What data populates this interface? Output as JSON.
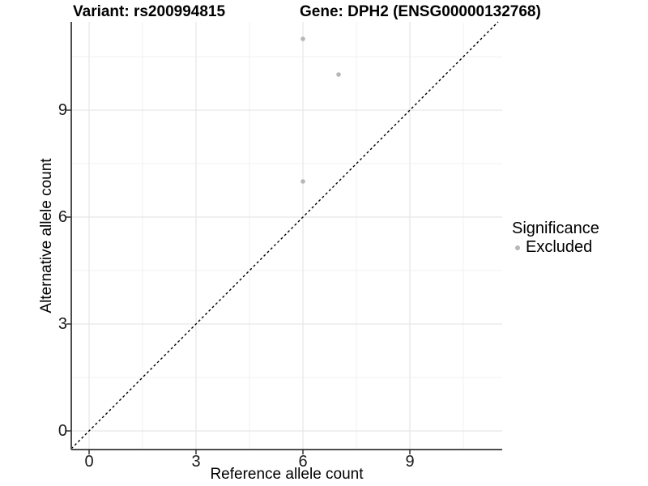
{
  "titles": {
    "variant": "Variant: rs200994815",
    "gene": "Gene: DPH2 (ENSG00000132768)"
  },
  "axes": {
    "x_label": "Reference allele count",
    "y_label": "Alternative allele count"
  },
  "legend": {
    "title": "Significance",
    "items": [
      {
        "label": "Excluded",
        "color": "#b7b7b7"
      }
    ]
  },
  "colors": {
    "background": "#ffffff",
    "point": "#b7b7b7",
    "grid_major": "#e7e7e7",
    "grid_minor": "#f1f1f1",
    "axis_line": "#4d4d4d",
    "tick": "#333333",
    "ref_line": "#000000",
    "text": "#000000"
  },
  "chart_data": {
    "type": "scatter",
    "title": "Variant: rs200994815 | Gene: DPH2 (ENSG00000132768)",
    "xlabel": "Reference allele count",
    "ylabel": "Alternative allele count",
    "xlim": [
      -0.55,
      11.55
    ],
    "ylim": [
      -0.55,
      11.55
    ],
    "x_ticks": [
      0,
      3,
      6,
      9
    ],
    "y_ticks": [
      0,
      3,
      6,
      9
    ],
    "minor_ticks": [
      1.5,
      4.5,
      7.5,
      10.5
    ],
    "grid": true,
    "legend_position": "right",
    "series": [
      {
        "name": "Excluded",
        "color": "#b7b7b7",
        "points": [
          {
            "x": 6,
            "y": 11
          },
          {
            "x": 7,
            "y": 10
          },
          {
            "x": 6,
            "y": 7
          }
        ]
      }
    ],
    "reference_line": {
      "kind": "identity",
      "style": "dashed",
      "from": -0.55,
      "to": 11.55
    }
  }
}
